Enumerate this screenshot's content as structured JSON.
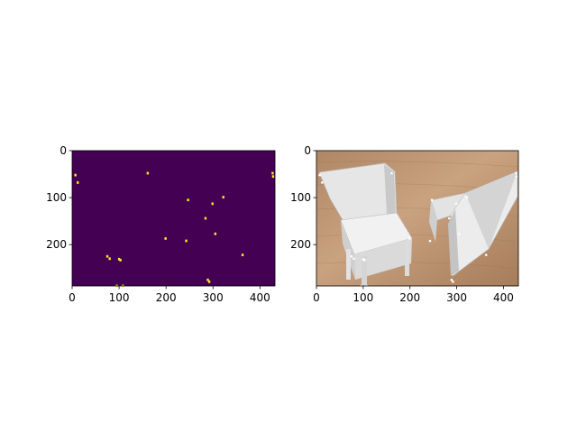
{
  "figure": {
    "background": "#ffffff"
  },
  "chart_data": [
    {
      "type": "heatmap",
      "colormap": "viridis",
      "colors": {
        "low": "#440154",
        "high": "#fde725"
      },
      "image_size": [
        432,
        288
      ],
      "xlim": [
        0,
        432
      ],
      "ylim": [
        288,
        0
      ],
      "y_inverted": true,
      "x_ticks": [
        0,
        100,
        200,
        300,
        400
      ],
      "y_ticks": [
        0,
        100,
        200
      ],
      "description_of_values": "binary mask: 0 background, 1 detected keypoints",
      "keypoints": [
        [
          7,
          52
        ],
        [
          12,
          68
        ],
        [
          161,
          48
        ],
        [
          427,
          48
        ],
        [
          428,
          55
        ],
        [
          247,
          105
        ],
        [
          322,
          99
        ],
        [
          299,
          113
        ],
        [
          284,
          144
        ],
        [
          305,
          177
        ],
        [
          199,
          187
        ],
        [
          243,
          192
        ],
        [
          363,
          222
        ],
        [
          75,
          225
        ],
        [
          80,
          230
        ],
        [
          100,
          231
        ],
        [
          103,
          233
        ],
        [
          289,
          275
        ],
        [
          292,
          279
        ],
        [
          95,
          288
        ],
        [
          108,
          288
        ]
      ]
    },
    {
      "type": "image",
      "content": "photo of two white paper chairs on a wooden table with detected keypoints marked",
      "image_size": [
        432,
        288
      ],
      "xlim": [
        0,
        432
      ],
      "ylim": [
        288,
        0
      ],
      "y_inverted": true,
      "x_ticks": [
        0,
        100,
        200,
        300,
        400
      ],
      "y_ticks": [
        0,
        100,
        200
      ],
      "colors": {
        "table_light": "#c7a07c",
        "table_dark": "#9c7556",
        "paper": "#ededed",
        "paper_shade": "#cfcfcf",
        "marker": "#ffffff"
      }
    }
  ]
}
